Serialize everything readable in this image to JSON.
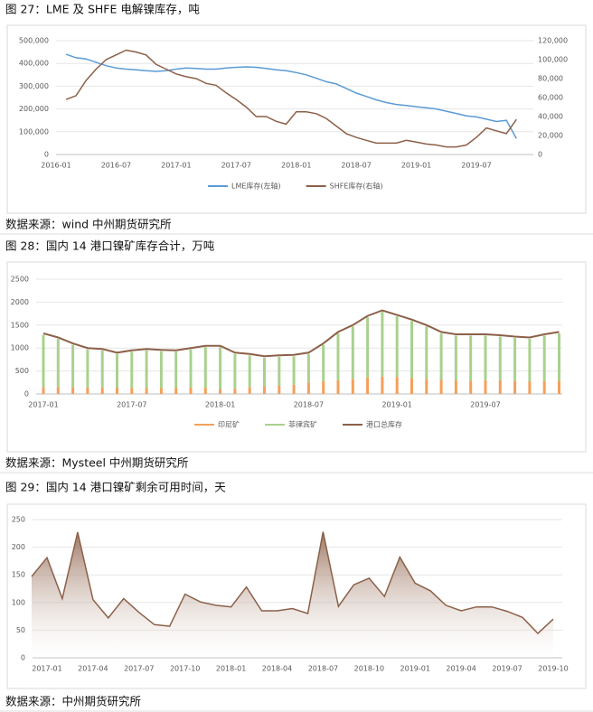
{
  "chart_data": [
    {
      "type": "line",
      "title": "图 27：LME 及 SHFE 电解镍库存，吨",
      "source": "数据来源：wind  中州期货研究所",
      "categories": [
        "2016-01",
        null,
        null,
        null,
        null,
        null,
        "2016-07",
        null,
        null,
        null,
        null,
        null,
        "2017-01",
        null,
        null,
        null,
        null,
        null,
        "2017-07",
        null,
        null,
        null,
        null,
        null,
        "2018-01",
        null,
        null,
        null,
        null,
        null,
        "2018-07",
        null,
        null,
        null,
        null,
        null,
        "2019-01",
        null,
        null,
        null,
        null,
        null,
        "2019-07",
        null,
        null,
        null,
        null
      ],
      "ylim": [
        0,
        500000
      ],
      "yticks": [
        0,
        {
          "value": 100000,
          "label": "100,000"
        },
        {
          "value": 200000,
          "label": "200,000"
        },
        {
          "value": 300000,
          "label": "300,000"
        },
        {
          "value": 400000,
          "label": "400,000"
        },
        {
          "value": 500000,
          "label": "500,000"
        }
      ],
      "y2lim": [
        0,
        120000
      ],
      "y2ticks": [
        0,
        {
          "value": 20000,
          "label": "20,000"
        },
        {
          "value": 40000,
          "label": "40,000"
        },
        {
          "value": 60000,
          "label": "60,000"
        },
        {
          "value": 80000,
          "label": "80,000"
        },
        {
          "value": 100000,
          "label": "100,000"
        },
        {
          "value": 120000,
          "label": "120,000"
        }
      ],
      "grid": true,
      "series": [
        {
          "name": "LME库存(左轴)",
          "color": "#5b9bd5",
          "values": [
            null,
            440000,
            425000,
            420000,
            405000,
            390000,
            380000,
            375000,
            372000,
            368000,
            365000,
            368000,
            375000,
            380000,
            378000,
            375000,
            375000,
            380000,
            383000,
            385000,
            383000,
            378000,
            372000,
            368000,
            360000,
            350000,
            335000,
            320000,
            310000,
            290000,
            270000,
            255000,
            240000,
            228000,
            220000,
            215000,
            210000,
            205000,
            200000,
            190000,
            180000,
            170000,
            165000,
            155000,
            145000,
            150000,
            70000
          ]
        },
        {
          "name": "SHFE库存(右轴)",
          "color": "#8c6048",
          "axis": "y2",
          "values": [
            null,
            58000,
            62000,
            78000,
            90000,
            100000,
            105000,
            110000,
            108000,
            105000,
            95000,
            90000,
            85000,
            82000,
            80000,
            75000,
            73000,
            65000,
            58000,
            50000,
            40000,
            40000,
            35000,
            32000,
            45000,
            45000,
            43000,
            38000,
            30000,
            22000,
            18000,
            15000,
            12000,
            12000,
            12000,
            15000,
            13000,
            11000,
            10000,
            8000,
            8000,
            10000,
            18000,
            28000,
            25000,
            22000,
            37000
          ]
        }
      ]
    },
    {
      "type": "bar",
      "title": "图 28：国内 14 港口镍矿库存合计，万吨",
      "source": "数据来源：Mysteel   中州期货研究所",
      "categories": [
        "2017-01",
        null,
        null,
        null,
        null,
        null,
        "2017-07",
        null,
        null,
        null,
        null,
        null,
        "2018-01",
        null,
        null,
        null,
        null,
        null,
        "2018-07",
        null,
        null,
        null,
        null,
        null,
        "2019-01",
        null,
        null,
        null,
        null,
        null,
        "2019-07",
        null,
        null,
        null,
        null,
        null
      ],
      "ylim": [
        0,
        2500
      ],
      "yticks": [
        0,
        500,
        1000,
        1500,
        2000,
        2500
      ],
      "grid": true,
      "series": [
        {
          "name": "印尼矿",
          "color": "#f4a05a",
          "values": [
            150,
            150,
            145,
            140,
            140,
            135,
            130,
            130,
            130,
            135,
            140,
            140,
            100,
            120,
            150,
            170,
            180,
            200,
            250,
            280,
            300,
            330,
            360,
            380,
            370,
            350,
            330,
            310,
            300,
            290,
            300,
            300,
            290,
            280,
            280,
            290
          ]
        },
        {
          "name": "菲律宾矿",
          "color": "#a9d18e",
          "values": [
            1140,
            1050,
            925,
            830,
            810,
            735,
            790,
            820,
            800,
            785,
            830,
            880,
            920,
            750,
            690,
            620,
            630,
            620,
            620,
            790,
            1020,
            1140,
            1310,
            1410,
            1320,
            1240,
            1140,
            1010,
            970,
            980,
            970,
            950,
            930,
            920,
            990,
            1030
          ]
        },
        {
          "name": "港口总库存",
          "color": "#8c6048",
          "type": "line",
          "values": [
            1320,
            1230,
            1100,
            1000,
            980,
            900,
            950,
            980,
            960,
            950,
            1000,
            1050,
            1050,
            900,
            870,
            820,
            840,
            850,
            900,
            1100,
            1350,
            1500,
            1700,
            1820,
            1720,
            1620,
            1500,
            1350,
            1300,
            1300,
            1300,
            1280,
            1250,
            1230,
            1300,
            1350
          ]
        }
      ]
    },
    {
      "type": "area",
      "title": "图 29：国内 14 港口镍矿剩余可用时间，天",
      "source": "数据来源：中州期货研究所",
      "categories": [
        null,
        "2017-01",
        null,
        null,
        "2017-04",
        null,
        null,
        "2017-07",
        null,
        null,
        "2017-10",
        null,
        null,
        "2018-01",
        null,
        null,
        "2018-04",
        null,
        null,
        "2018-07",
        null,
        null,
        "2018-10",
        null,
        null,
        "2019-01",
        null,
        null,
        "2019-04",
        null,
        null,
        "2019-07",
        null,
        null,
        "2019-10"
      ],
      "ylim": [
        0,
        250
      ],
      "yticks": [
        0,
        50,
        100,
        150,
        200,
        250
      ],
      "grid": true,
      "color": "#8c6048",
      "values": [
        147,
        181,
        107,
        227,
        105,
        72,
        107,
        82,
        60,
        57,
        115,
        101,
        95,
        92,
        128,
        85,
        85,
        89,
        80,
        228,
        93,
        132,
        144,
        111,
        182,
        135,
        121,
        95,
        85,
        92,
        92,
        84,
        73,
        44,
        70
      ]
    }
  ]
}
